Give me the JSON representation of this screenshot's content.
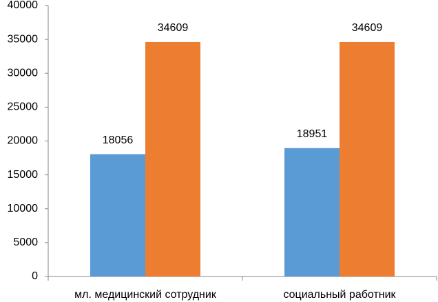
{
  "chart_data": {
    "type": "bar",
    "categories": [
      "мл. медицинский сотрудник",
      "социальный работник"
    ],
    "series": [
      {
        "color": "#5b9bd5",
        "values": [
          18056,
          18951
        ]
      },
      {
        "color": "#ed7d31",
        "values": [
          34609,
          34609
        ]
      }
    ],
    "ylim": [
      0,
      40000
    ],
    "yticks": [
      0,
      5000,
      10000,
      15000,
      20000,
      25000,
      30000,
      35000,
      40000
    ],
    "grid": false,
    "data_labels": true
  }
}
